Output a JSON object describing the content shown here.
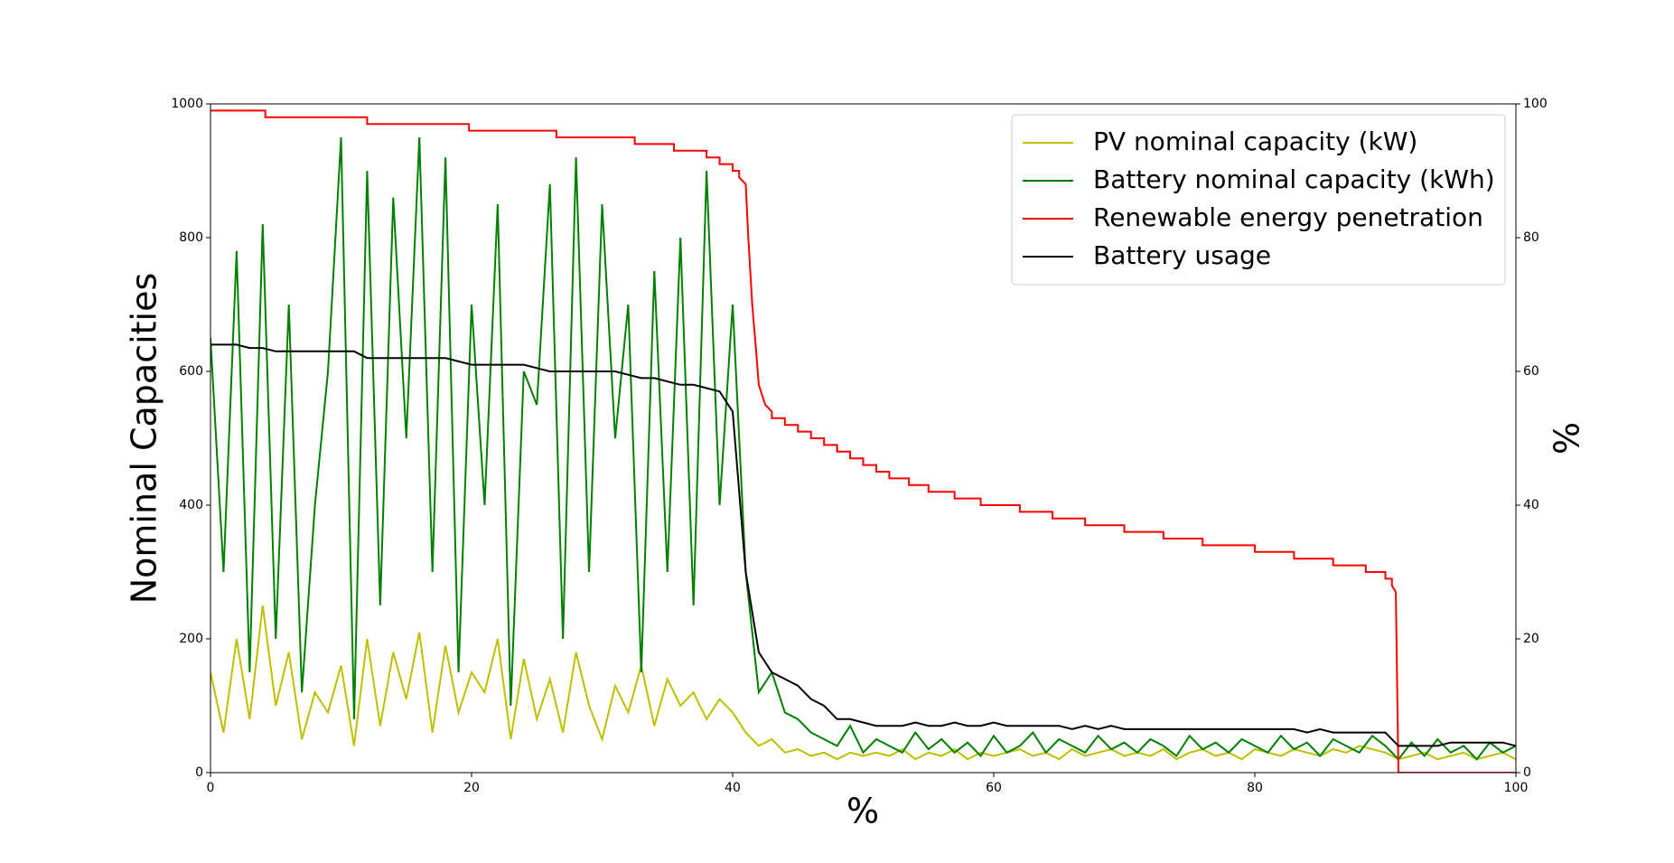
{
  "chart_data": {
    "type": "line",
    "xlabel": "%",
    "ylabel": "Nominal Capacities",
    "y2label": "%",
    "xlim": [
      0,
      100
    ],
    "xticks": [
      0,
      20,
      40,
      60,
      80,
      100
    ],
    "ylim": [
      0,
      1000
    ],
    "yticks": [
      0,
      200,
      400,
      600,
      800,
      1000
    ],
    "y2lim": [
      0,
      100
    ],
    "y2ticks": [
      0,
      20,
      40,
      60,
      80,
      100
    ],
    "grid": false,
    "legend": "upper right",
    "series": [
      {
        "name": "PV nominal capacity (kW)",
        "color": "#bfbf00",
        "axis": "y",
        "x": [
          0,
          1,
          2,
          3,
          4,
          5,
          6,
          7,
          8,
          9,
          10,
          11,
          12,
          13,
          14,
          15,
          16,
          17,
          18,
          19,
          20,
          21,
          22,
          23,
          24,
          25,
          26,
          27,
          28,
          29,
          30,
          31,
          32,
          33,
          34,
          35,
          36,
          37,
          38,
          39,
          40,
          41,
          42,
          43,
          44,
          45,
          46,
          47,
          48,
          49,
          50,
          51,
          52,
          53,
          54,
          55,
          56,
          57,
          58,
          59,
          60,
          61,
          62,
          63,
          64,
          65,
          66,
          67,
          68,
          69,
          70,
          71,
          72,
          73,
          74,
          75,
          76,
          77,
          78,
          79,
          80,
          81,
          82,
          83,
          84,
          85,
          86,
          87,
          88,
          89,
          90,
          91,
          92,
          93,
          94,
          95,
          96,
          97,
          98,
          99,
          100
        ],
        "values": [
          150,
          60,
          200,
          80,
          250,
          100,
          180,
          50,
          120,
          90,
          160,
          40,
          200,
          70,
          180,
          110,
          210,
          60,
          190,
          90,
          150,
          120,
          200,
          50,
          170,
          80,
          140,
          60,
          180,
          100,
          50,
          130,
          90,
          160,
          70,
          140,
          100,
          120,
          80,
          110,
          90,
          60,
          40,
          50,
          30,
          35,
          25,
          30,
          20,
          30,
          25,
          30,
          25,
          35,
          20,
          30,
          25,
          35,
          20,
          30,
          25,
          30,
          35,
          25,
          30,
          20,
          35,
          25,
          30,
          35,
          25,
          30,
          25,
          35,
          20,
          30,
          35,
          25,
          30,
          20,
          35,
          30,
          25,
          35,
          30,
          25,
          35,
          30,
          40,
          35,
          30,
          20,
          25,
          30,
          20,
          25,
          30,
          20,
          25,
          30,
          20
        ]
      },
      {
        "name": "Battery nominal capacity (kWh)",
        "color": "#008000",
        "axis": "y",
        "x": [
          0,
          1,
          2,
          3,
          4,
          5,
          6,
          7,
          8,
          9,
          10,
          11,
          12,
          13,
          14,
          15,
          16,
          17,
          18,
          19,
          20,
          21,
          22,
          23,
          24,
          25,
          26,
          27,
          28,
          29,
          30,
          31,
          32,
          33,
          34,
          35,
          36,
          37,
          38,
          39,
          40,
          41,
          42,
          43,
          44,
          45,
          46,
          47,
          48,
          49,
          50,
          51,
          52,
          53,
          54,
          55,
          56,
          57,
          58,
          59,
          60,
          61,
          62,
          63,
          64,
          65,
          66,
          67,
          68,
          69,
          70,
          71,
          72,
          73,
          74,
          75,
          76,
          77,
          78,
          79,
          80,
          81,
          82,
          83,
          84,
          85,
          86,
          87,
          88,
          89,
          90,
          91,
          92,
          93,
          94,
          95,
          96,
          97,
          98,
          99,
          100
        ],
        "values": [
          650,
          300,
          780,
          150,
          820,
          200,
          700,
          120,
          400,
          600,
          950,
          80,
          900,
          250,
          860,
          500,
          950,
          300,
          920,
          150,
          700,
          400,
          850,
          100,
          600,
          550,
          880,
          200,
          920,
          300,
          850,
          500,
          700,
          150,
          750,
          300,
          800,
          250,
          900,
          400,
          700,
          300,
          120,
          150,
          90,
          80,
          60,
          50,
          40,
          70,
          30,
          50,
          40,
          30,
          60,
          35,
          50,
          30,
          45,
          25,
          55,
          30,
          40,
          60,
          30,
          50,
          40,
          30,
          55,
          35,
          45,
          30,
          50,
          40,
          25,
          55,
          35,
          45,
          30,
          50,
          40,
          30,
          55,
          35,
          45,
          25,
          50,
          40,
          30,
          55,
          40,
          20,
          45,
          25,
          50,
          30,
          40,
          20,
          45,
          30,
          40
        ]
      },
      {
        "name": "Renewable energy penetration",
        "color": "#ff0000",
        "axis": "y2",
        "x": [
          0,
          4.2,
          4.2,
          12,
          12,
          19.8,
          19.8,
          26.5,
          26.5,
          32.5,
          32.5,
          35.5,
          35.5,
          38,
          38,
          39,
          39,
          40,
          40,
          40.5,
          40.5,
          41,
          41.2,
          41.5,
          41.8,
          42,
          42.5,
          43,
          43,
          44,
          44,
          45,
          45,
          46,
          46,
          47,
          47,
          48,
          48,
          49,
          49,
          50,
          50,
          51,
          51,
          52,
          52,
          53.5,
          53.5,
          55,
          55,
          57,
          57,
          59,
          59,
          62,
          62,
          64.5,
          64.5,
          67,
          67,
          70,
          70,
          73,
          73,
          76,
          76,
          80,
          80,
          83,
          83,
          86,
          86,
          88.5,
          88.5,
          90,
          90,
          90.5,
          90.5,
          90.8,
          91,
          100
        ],
        "values": [
          99,
          99,
          98,
          98,
          97,
          97,
          96,
          96,
          95,
          95,
          94,
          94,
          93,
          93,
          92,
          92,
          91,
          91,
          90,
          90,
          89,
          88,
          80,
          70,
          63,
          58,
          55,
          54,
          53,
          53,
          52,
          52,
          51,
          51,
          50,
          50,
          49,
          49,
          48,
          48,
          47,
          47,
          46,
          46,
          45,
          45,
          44,
          44,
          43,
          43,
          42,
          42,
          41,
          41,
          40,
          40,
          39,
          39,
          38,
          38,
          37,
          37,
          36,
          36,
          35,
          35,
          34,
          34,
          33,
          33,
          32,
          32,
          31,
          31,
          30,
          30,
          29,
          29,
          28,
          27,
          0,
          0
        ]
      },
      {
        "name": "Battery usage",
        "color": "#000000",
        "axis": "y2",
        "x": [
          0,
          1,
          2,
          3,
          4,
          5,
          6,
          7,
          8,
          9,
          10,
          11,
          12,
          13,
          14,
          15,
          16,
          17,
          18,
          19,
          20,
          21,
          22,
          23,
          24,
          25,
          26,
          27,
          28,
          29,
          30,
          31,
          32,
          33,
          34,
          35,
          36,
          37,
          38,
          39,
          40,
          41,
          42,
          43,
          44,
          45,
          46,
          47,
          48,
          49,
          50,
          51,
          52,
          53,
          54,
          55,
          56,
          57,
          58,
          59,
          60,
          61,
          62,
          63,
          64,
          65,
          66,
          67,
          68,
          69,
          70,
          71,
          72,
          73,
          74,
          75,
          76,
          77,
          78,
          79,
          80,
          81,
          82,
          83,
          84,
          85,
          86,
          87,
          88,
          89,
          90,
          91,
          92,
          93,
          94,
          95,
          96,
          97,
          98,
          99,
          100
        ],
        "values": [
          64,
          64,
          64,
          63.5,
          63.5,
          63,
          63,
          63,
          63,
          63,
          63,
          63,
          62,
          62,
          62,
          62,
          62,
          62,
          62,
          61.5,
          61,
          61,
          61,
          61,
          61,
          60.5,
          60,
          60,
          60,
          60,
          60,
          60,
          59.5,
          59,
          59,
          58.5,
          58,
          58,
          57.5,
          57,
          54,
          30,
          18,
          15,
          14,
          13,
          11,
          10,
          8,
          8,
          7.5,
          7,
          7,
          7,
          7.5,
          7,
          7,
          7.5,
          7,
          7,
          7.5,
          7,
          7,
          7,
          7,
          7,
          6.5,
          7,
          6.5,
          7,
          6.5,
          6.5,
          6.5,
          6.5,
          6.5,
          6.5,
          6.5,
          6.5,
          6.5,
          6.5,
          6.5,
          6.5,
          6.5,
          6.5,
          6,
          6.5,
          6,
          6,
          6,
          6,
          6,
          4,
          4,
          4,
          4,
          4.5,
          4.5,
          4.5,
          4.5,
          4.5,
          4
        ]
      }
    ]
  }
}
